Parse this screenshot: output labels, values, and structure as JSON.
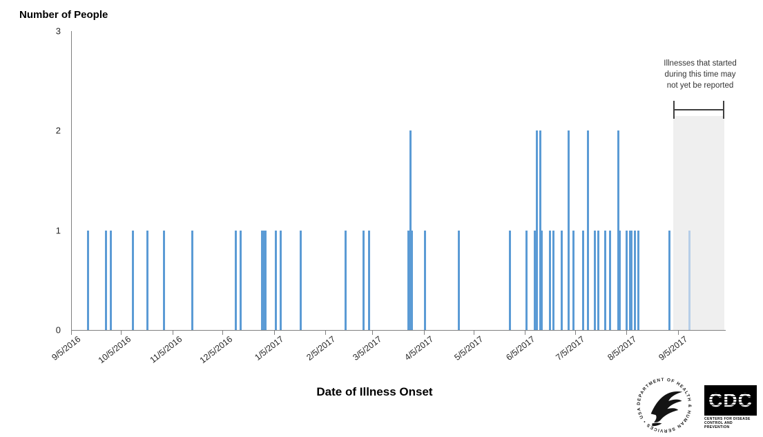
{
  "chart_data": {
    "type": "bar",
    "title": "Number of People",
    "xlabel": "Date of Illness Onset",
    "ylabel": "Number of People",
    "ylim": [
      0,
      3
    ],
    "yticks": [
      0,
      1,
      2,
      3
    ],
    "grid": false,
    "legend": false,
    "x_start": "9/5/2016",
    "x_end": "9/5/2017",
    "x_tick_labels": [
      "9/5/2016",
      "10/5/2016",
      "11/5/2016",
      "12/5/2016",
      "1/5/2017",
      "2/5/2017",
      "3/5/2017",
      "4/5/2017",
      "5/5/2017",
      "6/5/2017",
      "7/5/2017",
      "8/5/2017",
      "9/5/2017"
    ],
    "bars": [
      {
        "date": "9/15/2016",
        "count": 1
      },
      {
        "date": "9/26/2016",
        "count": 1
      },
      {
        "date": "9/29/2016",
        "count": 1
      },
      {
        "date": "10/12/2016",
        "count": 1
      },
      {
        "date": "10/21/2016",
        "count": 1
      },
      {
        "date": "10/31/2016",
        "count": 1
      },
      {
        "date": "11/17/2016",
        "count": 1
      },
      {
        "date": "12/13/2016",
        "count": 1
      },
      {
        "date": "12/16/2016",
        "count": 1
      },
      {
        "date": "12/29/2016",
        "count": 1
      },
      {
        "date": "12/30/2016",
        "count": 1
      },
      {
        "date": "12/31/2016",
        "count": 1
      },
      {
        "date": "1/6/2017",
        "count": 1
      },
      {
        "date": "1/9/2017",
        "count": 1
      },
      {
        "date": "1/21/2017",
        "count": 1
      },
      {
        "date": "2/17/2017",
        "count": 1
      },
      {
        "date": "2/28/2017",
        "count": 1
      },
      {
        "date": "3/3/2017",
        "count": 1
      },
      {
        "date": "3/27/2017",
        "count": 1
      },
      {
        "date": "3/28/2017",
        "count": 2
      },
      {
        "date": "3/29/2017",
        "count": 1
      },
      {
        "date": "4/6/2017",
        "count": 1
      },
      {
        "date": "4/26/2017",
        "count": 1
      },
      {
        "date": "5/27/2017",
        "count": 1
      },
      {
        "date": "6/6/2017",
        "count": 1
      },
      {
        "date": "6/11/2017",
        "count": 1
      },
      {
        "date": "6/12/2017",
        "count": 2
      },
      {
        "date": "6/14/2017",
        "count": 2
      },
      {
        "date": "6/15/2017",
        "count": 1
      },
      {
        "date": "6/20/2017",
        "count": 1
      },
      {
        "date": "6/22/2017",
        "count": 1
      },
      {
        "date": "6/27/2017",
        "count": 1
      },
      {
        "date": "7/1/2017",
        "count": 2
      },
      {
        "date": "7/4/2017",
        "count": 1
      },
      {
        "date": "7/10/2017",
        "count": 1
      },
      {
        "date": "7/13/2017",
        "count": 2
      },
      {
        "date": "7/17/2017",
        "count": 1
      },
      {
        "date": "7/19/2017",
        "count": 1
      },
      {
        "date": "7/23/2017",
        "count": 1
      },
      {
        "date": "7/26/2017",
        "count": 1
      },
      {
        "date": "7/31/2017",
        "count": 2
      },
      {
        "date": "8/1/2017",
        "count": 1
      },
      {
        "date": "8/5/2017",
        "count": 1
      },
      {
        "date": "8/7/2017",
        "count": 1
      },
      {
        "date": "8/8/2017",
        "count": 1
      },
      {
        "date": "8/10/2017",
        "count": 1
      },
      {
        "date": "8/12/2017",
        "count": 1
      },
      {
        "date": "8/31/2017",
        "count": 1
      },
      {
        "date": "9/12/2017",
        "count": 1,
        "light": true
      }
    ],
    "reporting_lag": {
      "start": "9/2/2017",
      "end": "10/3/2017",
      "label_lines": [
        "Illnesses that started",
        "during this time may",
        "not yet  be reported"
      ]
    },
    "colors": {
      "bar": "#5B9BD5",
      "bar_light": "#B7CEE8",
      "shade": "#EFEFEF",
      "axis": "#7F7F7F",
      "bracket": "#3F3F3F"
    }
  },
  "annotation": {
    "line1": "Illnesses that started",
    "line2": "during this time may",
    "line3": "not yet  be reported"
  },
  "footer": {
    "cdc_logo_text": "CDC",
    "cdc_caption_line1": "CENTERS FOR DISEASE",
    "cdc_caption_line2": "CONTROL AND PREVENTION",
    "hhs_circle_text": "DEPARTMENT OF HEALTH & HUMAN SERVICES • USA"
  }
}
